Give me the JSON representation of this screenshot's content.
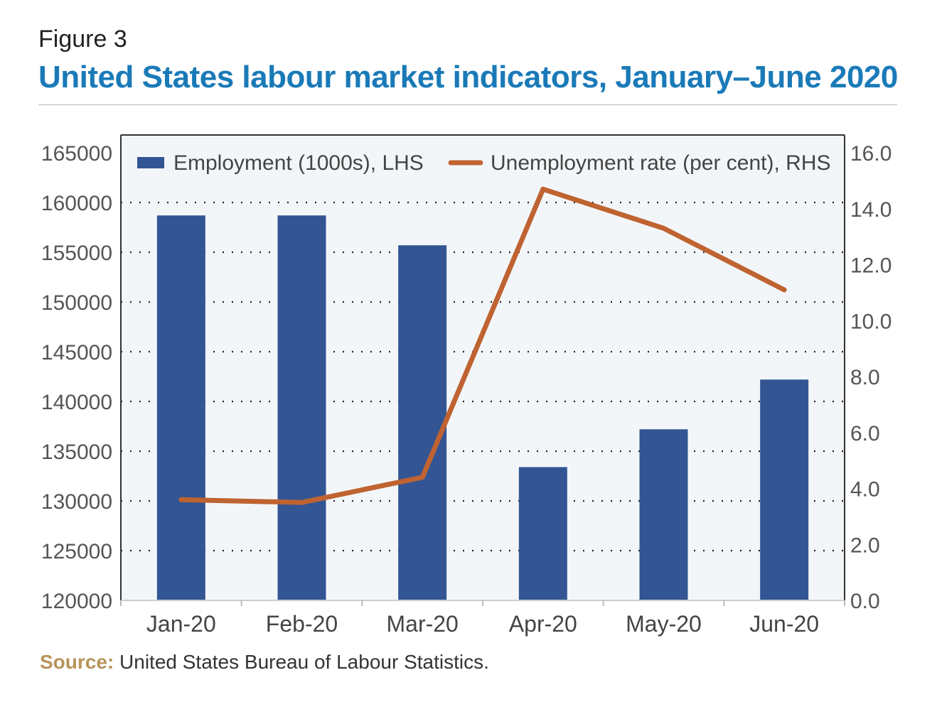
{
  "header": {
    "figure_label": "Figure 3",
    "title": "United States labour market indicators, January–June 2020"
  },
  "source": {
    "label": "Source:",
    "text": " United States Bureau of Labour Statistics."
  },
  "colors": {
    "title": "#1a7ab8",
    "bar": "#335593",
    "line": "#bf6331",
    "plot_bg": "#f3f6f9",
    "source_label": "#b8935a"
  },
  "chart_data": {
    "type": "bar",
    "categories": [
      "Jan-20",
      "Feb-20",
      "Mar-20",
      "Apr-20",
      "May-20",
      "Jun-20"
    ],
    "series": [
      {
        "name": "Employment (1000s), LHS",
        "type": "bar",
        "axis": "left",
        "values": [
          158700,
          158700,
          155700,
          133400,
          137200,
          142200
        ]
      },
      {
        "name": "Unemployment rate (per cent), RHS",
        "type": "line",
        "axis": "right",
        "values": [
          3.6,
          3.5,
          4.4,
          14.7,
          13.3,
          11.1
        ]
      }
    ],
    "y_left": {
      "ylim": [
        120000,
        165000
      ],
      "ticks": [
        "120000",
        "125000",
        "130000",
        "135000",
        "140000",
        "145000",
        "150000",
        "155000",
        "160000",
        "165000"
      ]
    },
    "y_right": {
      "ylim": [
        0,
        16
      ],
      "ticks": [
        "0.0",
        "2.0",
        "4.0",
        "6.0",
        "8.0",
        "10.0",
        "12.0",
        "14.0",
        "16.0"
      ]
    },
    "grid": "horizontal dotted",
    "legend": "top"
  }
}
